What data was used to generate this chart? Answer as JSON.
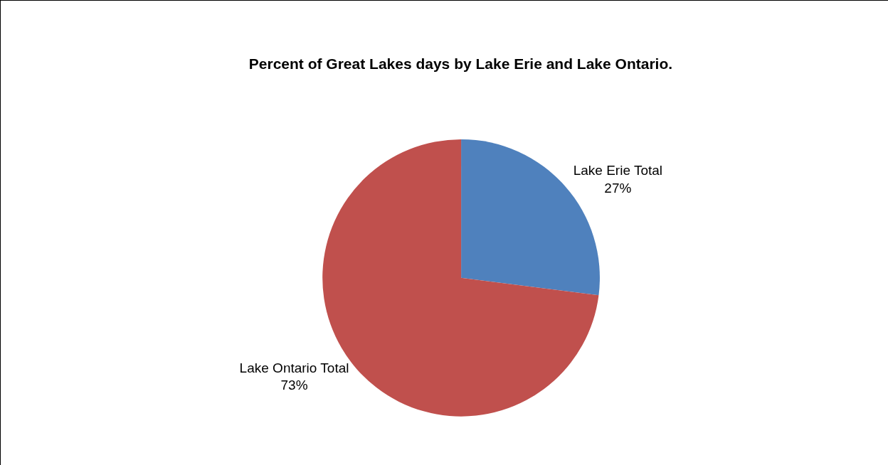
{
  "chart_data": {
    "type": "pie",
    "title": "Percent of Great Lakes days by Lake Erie and Lake Ontario.",
    "categories": [
      "Lake Erie Total",
      "Lake Ontario Total"
    ],
    "values": [
      27,
      73
    ],
    "colors": [
      "#4f81bd",
      "#c0504d"
    ],
    "value_labels": [
      "27%",
      "73%"
    ],
    "legend": false
  }
}
